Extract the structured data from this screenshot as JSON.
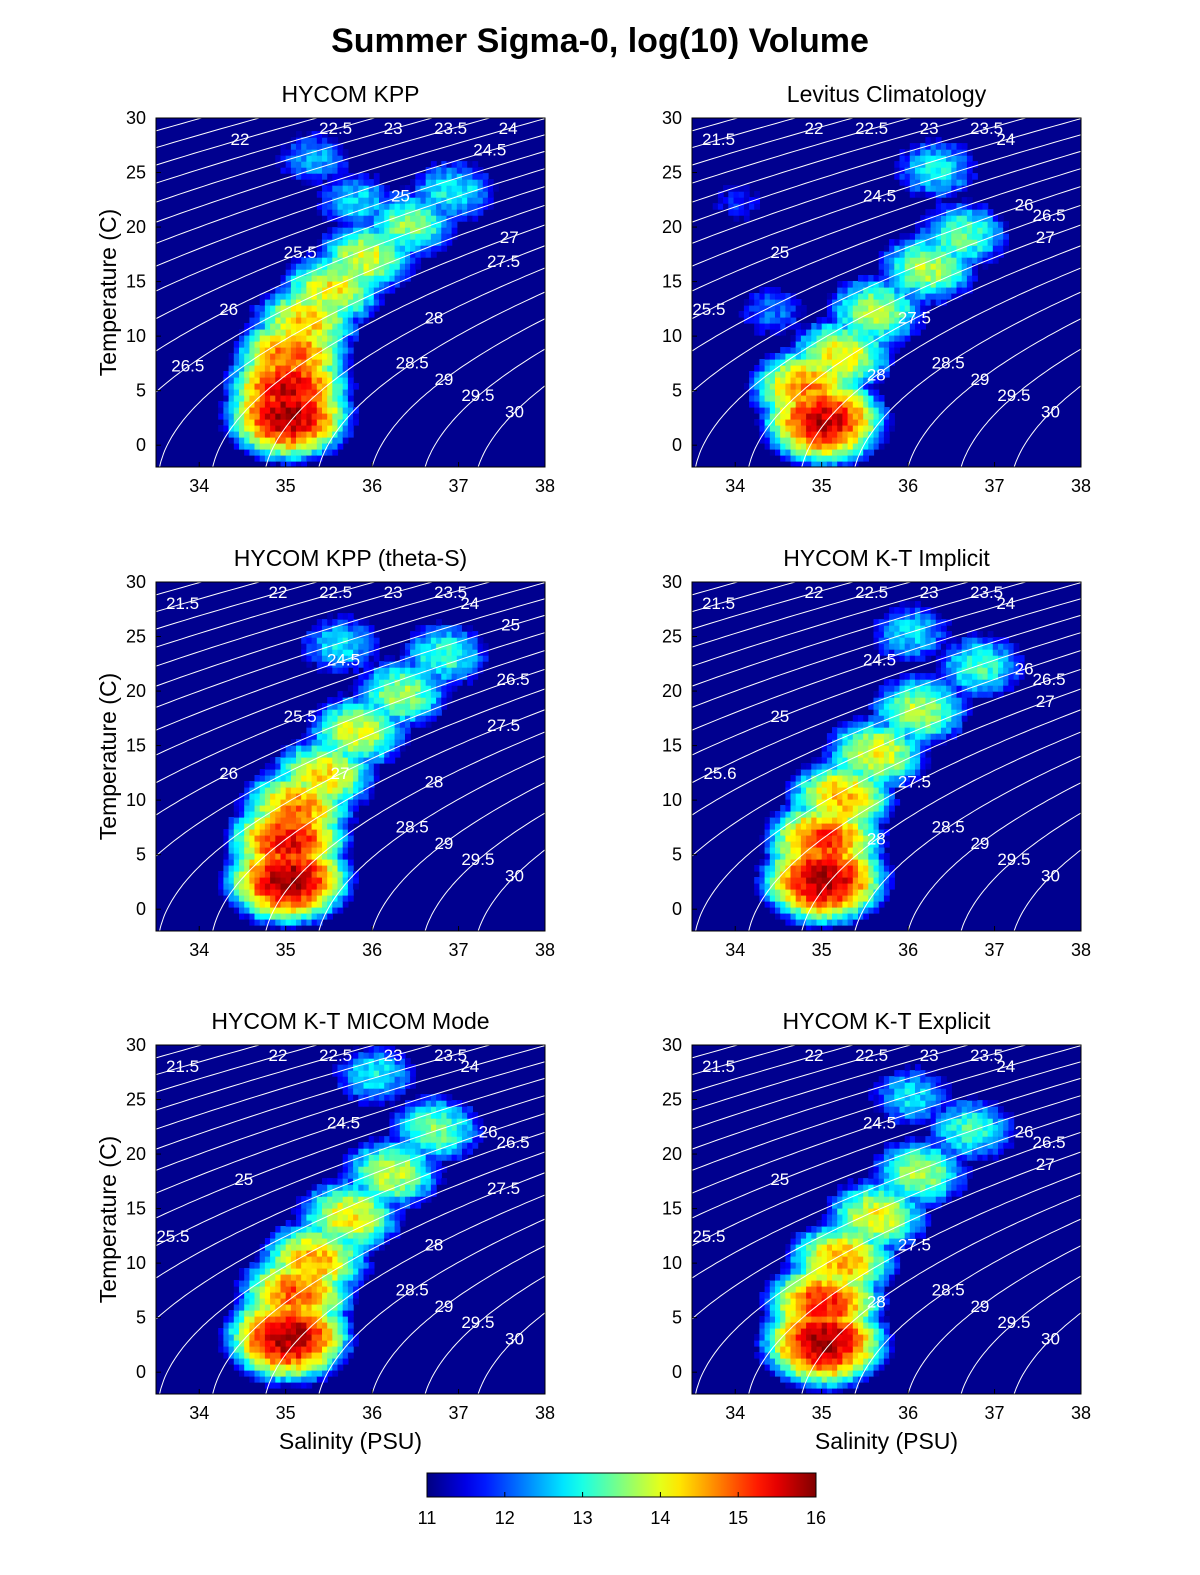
{
  "figure": {
    "title": "Summer Sigma-0, log(10) Volume"
  },
  "chart_data": [
    {
      "type": "heatmap",
      "title": "HYCOM KPP",
      "xlabel": "",
      "ylabel": "Temperature (C)",
      "xlim": [
        33.5,
        38
      ],
      "ylim": [
        -2,
        30
      ],
      "xticks": [
        34,
        35,
        36,
        37,
        38
      ],
      "yticks": [
        0,
        5,
        10,
        15,
        20,
        25,
        30
      ],
      "contour_labels": [
        "22",
        "22.5",
        "23",
        "24",
        "23.5",
        "24.5",
        "25",
        "25.5",
        "26",
        "26.5",
        "27",
        "27.5",
        "28",
        "28.5",
        "29",
        "29.5",
        "30"
      ],
      "distribution": [
        {
          "s": 35.0,
          "t": 2.5,
          "v": 15.9
        },
        {
          "s": 35.0,
          "t": 5.0,
          "v": 15.6
        },
        {
          "s": 35.05,
          "t": 8.0,
          "v": 15.0
        },
        {
          "s": 35.2,
          "t": 11.0,
          "v": 14.4
        },
        {
          "s": 35.5,
          "t": 14.0,
          "v": 14.2
        },
        {
          "s": 35.9,
          "t": 17.0,
          "v": 14.0
        },
        {
          "s": 36.4,
          "t": 20.0,
          "v": 13.6
        },
        {
          "s": 36.9,
          "t": 23.0,
          "v": 13.0
        },
        {
          "s": 35.8,
          "t": 22.0,
          "v": 12.8
        },
        {
          "s": 35.3,
          "t": 26.0,
          "v": 12.5
        }
      ]
    },
    {
      "type": "heatmap",
      "title": "Levitus Climatology",
      "xlabel": "",
      "ylabel": "",
      "xlim": [
        33.5,
        38
      ],
      "ylim": [
        -2,
        30
      ],
      "xticks": [
        34,
        35,
        36,
        37,
        38
      ],
      "yticks": [
        0,
        5,
        10,
        15,
        20,
        25,
        30
      ],
      "contour_labels": [
        "21.5",
        "22",
        "22.5",
        "23.5",
        "23",
        "24",
        "24.5",
        "25",
        "25.5",
        "26",
        "26.5",
        "27",
        "27.5",
        "28",
        "28.5",
        "29",
        "29.5",
        "30"
      ],
      "distribution": [
        {
          "s": 35.0,
          "t": 2.0,
          "v": 15.7
        },
        {
          "s": 34.8,
          "t": 5.0,
          "v": 14.8
        },
        {
          "s": 35.2,
          "t": 8.0,
          "v": 14.2
        },
        {
          "s": 35.6,
          "t": 12.0,
          "v": 13.8
        },
        {
          "s": 36.2,
          "t": 16.0,
          "v": 13.8
        },
        {
          "s": 36.6,
          "t": 19.0,
          "v": 13.4
        },
        {
          "s": 36.3,
          "t": 25.0,
          "v": 12.9
        },
        {
          "s": 34.4,
          "t": 12.0,
          "v": 12.2
        },
        {
          "s": 34.0,
          "t": 22.0,
          "v": 11.7
        }
      ]
    },
    {
      "type": "heatmap",
      "title": "HYCOM KPP (theta-S)",
      "xlabel": "",
      "ylabel": "Temperature (C)",
      "xlim": [
        33.5,
        38
      ],
      "ylim": [
        -2,
        30
      ],
      "xticks": [
        34,
        35,
        36,
        37,
        38
      ],
      "yticks": [
        0,
        5,
        10,
        15,
        20,
        25,
        30
      ],
      "contour_labels": [
        "21.5",
        "22",
        "22.5",
        "23",
        "23.5",
        "24",
        "24.5",
        "25.5",
        "26",
        "25",
        "26.5",
        "27.5",
        "28",
        "27",
        "28.5",
        "29",
        "29.5",
        "30"
      ],
      "distribution": [
        {
          "s": 35.0,
          "t": 2.5,
          "v": 15.9
        },
        {
          "s": 35.0,
          "t": 6.0,
          "v": 15.5
        },
        {
          "s": 35.1,
          "t": 9.0,
          "v": 14.8
        },
        {
          "s": 35.4,
          "t": 12.0,
          "v": 14.3
        },
        {
          "s": 35.8,
          "t": 16.0,
          "v": 14.0
        },
        {
          "s": 36.3,
          "t": 19.5,
          "v": 13.7
        },
        {
          "s": 36.8,
          "t": 23.0,
          "v": 13.2
        },
        {
          "s": 35.6,
          "t": 24.0,
          "v": 12.8
        }
      ]
    },
    {
      "type": "heatmap",
      "title": "HYCOM K-T Implicit",
      "xlabel": "",
      "ylabel": "",
      "xlim": [
        33.5,
        38
      ],
      "ylim": [
        -2,
        30
      ],
      "xticks": [
        34,
        35,
        36,
        37,
        38
      ],
      "yticks": [
        0,
        5,
        10,
        15,
        20,
        25,
        30
      ],
      "contour_labels": [
        "21.5",
        "22",
        "22.5",
        "23",
        "23.5",
        "24",
        "24.5",
        "25",
        "25.6",
        "26",
        "26.5",
        "27",
        "27.5",
        "28",
        "28.5",
        "29",
        "29.5",
        "30"
      ],
      "distribution": [
        {
          "s": 35.0,
          "t": 2.5,
          "v": 15.9
        },
        {
          "s": 35.0,
          "t": 6.0,
          "v": 15.2
        },
        {
          "s": 35.2,
          "t": 10.0,
          "v": 14.5
        },
        {
          "s": 35.6,
          "t": 14.0,
          "v": 14.1
        },
        {
          "s": 36.1,
          "t": 18.0,
          "v": 13.8
        },
        {
          "s": 36.8,
          "t": 22.0,
          "v": 13.2
        },
        {
          "s": 36.0,
          "t": 25.0,
          "v": 12.8
        }
      ]
    },
    {
      "type": "heatmap",
      "title": "HYCOM K-T MICOM Mode",
      "xlabel": "Salinity (PSU)",
      "ylabel": "Temperature (C)",
      "xlim": [
        33.5,
        38
      ],
      "ylim": [
        -2,
        30
      ],
      "xticks": [
        34,
        35,
        36,
        37,
        38
      ],
      "yticks": [
        0,
        5,
        10,
        15,
        20,
        25,
        30
      ],
      "contour_labels": [
        "21.5",
        "22",
        "23",
        "22.5",
        "23.5",
        "24",
        "24.5",
        "25",
        "25.5",
        "26",
        "26.5",
        "27.5",
        "28",
        "28.5",
        "29",
        "29.5",
        "30"
      ],
      "distribution": [
        {
          "s": 35.0,
          "t": 3.0,
          "v": 15.9
        },
        {
          "s": 35.1,
          "t": 7.0,
          "v": 15.0
        },
        {
          "s": 35.3,
          "t": 10.0,
          "v": 14.6
        },
        {
          "s": 35.7,
          "t": 14.0,
          "v": 14.2
        },
        {
          "s": 36.2,
          "t": 18.0,
          "v": 13.9
        },
        {
          "s": 36.7,
          "t": 22.0,
          "v": 13.5
        },
        {
          "s": 36.0,
          "t": 27.0,
          "v": 12.9
        }
      ]
    },
    {
      "type": "heatmap",
      "title": "HYCOM K-T Explicit",
      "xlabel": "Salinity (PSU)",
      "ylabel": "",
      "xlim": [
        33.5,
        38
      ],
      "ylim": [
        -2,
        30
      ],
      "xticks": [
        34,
        35,
        36,
        37,
        38
      ],
      "yticks": [
        0,
        5,
        10,
        15,
        20,
        25,
        30
      ],
      "contour_labels": [
        "21.5",
        "22",
        "22.5",
        "23",
        "23.5",
        "24",
        "24.5",
        "25",
        "25.5",
        "26",
        "26.5",
        "27",
        "27.5",
        "28",
        "28.5",
        "29",
        "29.5",
        "30"
      ],
      "distribution": [
        {
          "s": 35.0,
          "t": 2.5,
          "v": 15.9
        },
        {
          "s": 35.0,
          "t": 6.0,
          "v": 15.3
        },
        {
          "s": 35.2,
          "t": 10.0,
          "v": 14.6
        },
        {
          "s": 35.6,
          "t": 14.0,
          "v": 14.1
        },
        {
          "s": 36.1,
          "t": 18.0,
          "v": 13.7
        },
        {
          "s": 36.7,
          "t": 22.0,
          "v": 13.2
        },
        {
          "s": 36.0,
          "t": 25.0,
          "v": 12.8
        }
      ]
    }
  ],
  "colorbar": {
    "min": 11,
    "max": 16,
    "ticks": [
      "11",
      "12",
      "13",
      "14",
      "15",
      "16"
    ],
    "colormap": "jet"
  },
  "colors": {
    "background": "#00008f",
    "contour": "#ffffff",
    "axis": "#000000"
  }
}
